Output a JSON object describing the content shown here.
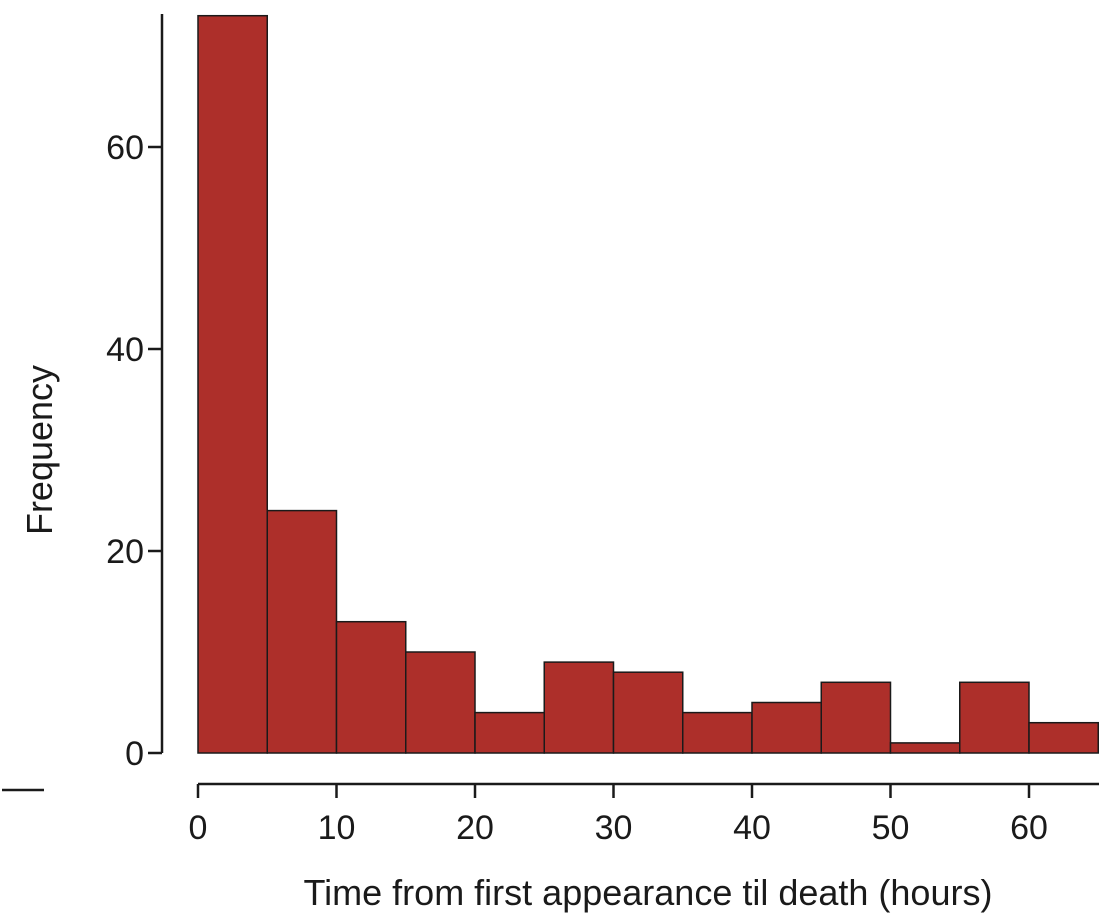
{
  "chart_data": {
    "type": "bar",
    "histogram": true,
    "bin_width": 5,
    "bins": [
      {
        "start": 0,
        "end": 5,
        "value": 73
      },
      {
        "start": 5,
        "end": 10,
        "value": 24
      },
      {
        "start": 10,
        "end": 15,
        "value": 13
      },
      {
        "start": 15,
        "end": 20,
        "value": 10
      },
      {
        "start": 20,
        "end": 25,
        "value": 4
      },
      {
        "start": 25,
        "end": 30,
        "value": 9
      },
      {
        "start": 30,
        "end": 35,
        "value": 8
      },
      {
        "start": 35,
        "end": 40,
        "value": 4
      },
      {
        "start": 40,
        "end": 45,
        "value": 5
      },
      {
        "start": 45,
        "end": 50,
        "value": 7
      },
      {
        "start": 50,
        "end": 55,
        "value": 1
      },
      {
        "start": 55,
        "end": 60,
        "value": 7
      },
      {
        "start": 60,
        "end": 65,
        "value": 3
      }
    ],
    "title": "",
    "xlabel": "Time from first appearance til death (hours)",
    "ylabel": "Frequency",
    "xlim": [
      0,
      65
    ],
    "ylim": [
      0,
      73
    ],
    "xticks": [
      0,
      10,
      20,
      30,
      40,
      50,
      60
    ],
    "yticks": [
      0,
      20,
      40,
      60
    ],
    "grid": false,
    "legend": "none",
    "bar_color": "#ad2f2a",
    "axis_color": "#1a1a1a"
  }
}
